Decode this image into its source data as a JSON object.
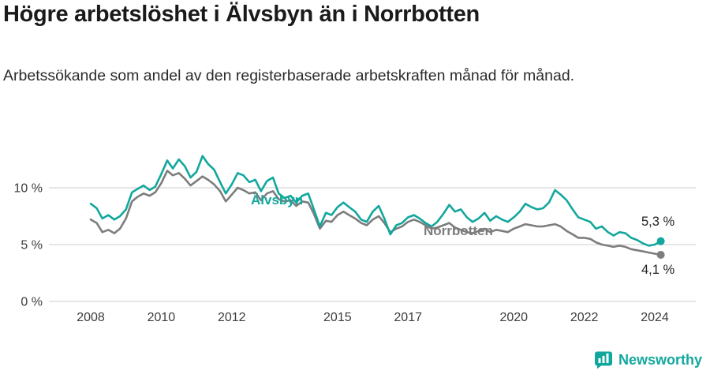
{
  "title": "Högre arbetslöshet i Älvsbyn än i Norrbotten",
  "subtitle": "Arbetssökande som andel av den registerbaserade arbetskraften månad för månad.",
  "footer": {
    "brand": "Newsworthy"
  },
  "colors": {
    "alvsbyn": "#12a79d",
    "norrbotten": "#7d7d7d",
    "grid": "#cccccc",
    "axis_text": "#3c3c3c",
    "title_text": "#1a1a1a"
  },
  "chart_data": {
    "type": "line",
    "title": "Högre arbetslöshet i Älvsbyn än i Norrbotten",
    "xlabel": "",
    "ylabel": "",
    "x_unit": "decimal_year",
    "xlim": [
      2007.8,
      2024.4
    ],
    "ylim": [
      0,
      13.5
    ],
    "grid": "horizontal",
    "legend_position": "inline",
    "y_ticks": [
      {
        "value": 0,
        "label": "0 %"
      },
      {
        "value": 5,
        "label": "5 %"
      },
      {
        "value": 10,
        "label": "10 %"
      }
    ],
    "x_ticks": [
      {
        "value": 2008,
        "label": "2008"
      },
      {
        "value": 2010,
        "label": "2010"
      },
      {
        "value": 2012,
        "label": "2012"
      },
      {
        "value": 2015,
        "label": "2015"
      },
      {
        "value": 2017,
        "label": "2017"
      },
      {
        "value": 2020,
        "label": "2020"
      },
      {
        "value": 2022,
        "label": "2022"
      },
      {
        "value": 2024,
        "label": "2024"
      }
    ],
    "series": [
      {
        "name": "Älvsbyn",
        "color": "#12a79d",
        "end_label": "5,3 %",
        "end_value": 5.3,
        "points": [
          [
            2008.0,
            8.6
          ],
          [
            2008.17,
            8.2
          ],
          [
            2008.33,
            7.3
          ],
          [
            2008.5,
            7.6
          ],
          [
            2008.67,
            7.2
          ],
          [
            2008.83,
            7.5
          ],
          [
            2009.0,
            8.1
          ],
          [
            2009.17,
            9.6
          ],
          [
            2009.33,
            9.9
          ],
          [
            2009.5,
            10.2
          ],
          [
            2009.67,
            9.8
          ],
          [
            2009.83,
            10.1
          ],
          [
            2010.0,
            11.2
          ],
          [
            2010.17,
            12.4
          ],
          [
            2010.33,
            11.7
          ],
          [
            2010.5,
            12.5
          ],
          [
            2010.67,
            11.9
          ],
          [
            2010.83,
            10.9
          ],
          [
            2011.0,
            11.4
          ],
          [
            2011.17,
            12.8
          ],
          [
            2011.33,
            12.1
          ],
          [
            2011.5,
            11.6
          ],
          [
            2011.67,
            10.5
          ],
          [
            2011.83,
            9.5
          ],
          [
            2012.0,
            10.3
          ],
          [
            2012.17,
            11.3
          ],
          [
            2012.33,
            11.1
          ],
          [
            2012.5,
            10.5
          ],
          [
            2012.67,
            10.7
          ],
          [
            2012.83,
            9.7
          ],
          [
            2013.0,
            10.6
          ],
          [
            2013.17,
            10.9
          ],
          [
            2013.33,
            9.5
          ],
          [
            2013.5,
            9.1
          ],
          [
            2013.67,
            9.3
          ],
          [
            2013.83,
            8.7
          ],
          [
            2014.0,
            9.3
          ],
          [
            2014.17,
            9.5
          ],
          [
            2014.33,
            8.1
          ],
          [
            2014.5,
            6.6
          ],
          [
            2014.67,
            7.8
          ],
          [
            2014.83,
            7.6
          ],
          [
            2015.0,
            8.3
          ],
          [
            2015.17,
            8.7
          ],
          [
            2015.33,
            8.3
          ],
          [
            2015.5,
            7.9
          ],
          [
            2015.67,
            7.2
          ],
          [
            2015.83,
            7.0
          ],
          [
            2016.0,
            7.9
          ],
          [
            2016.17,
            8.4
          ],
          [
            2016.33,
            7.3
          ],
          [
            2016.5,
            5.9
          ],
          [
            2016.67,
            6.7
          ],
          [
            2016.83,
            6.9
          ],
          [
            2017.0,
            7.4
          ],
          [
            2017.17,
            7.6
          ],
          [
            2017.33,
            7.3
          ],
          [
            2017.5,
            6.9
          ],
          [
            2017.67,
            6.6
          ],
          [
            2017.83,
            7.0
          ],
          [
            2018.0,
            7.7
          ],
          [
            2018.17,
            8.5
          ],
          [
            2018.33,
            7.9
          ],
          [
            2018.5,
            8.1
          ],
          [
            2018.67,
            7.4
          ],
          [
            2018.83,
            7.0
          ],
          [
            2019.0,
            7.3
          ],
          [
            2019.17,
            7.8
          ],
          [
            2019.33,
            7.1
          ],
          [
            2019.5,
            7.5
          ],
          [
            2019.67,
            7.2
          ],
          [
            2019.83,
            7.0
          ],
          [
            2020.0,
            7.4
          ],
          [
            2020.17,
            7.9
          ],
          [
            2020.33,
            8.6
          ],
          [
            2020.5,
            8.3
          ],
          [
            2020.67,
            8.1
          ],
          [
            2020.83,
            8.2
          ],
          [
            2021.0,
            8.7
          ],
          [
            2021.17,
            9.8
          ],
          [
            2021.33,
            9.4
          ],
          [
            2021.5,
            8.9
          ],
          [
            2021.67,
            8.1
          ],
          [
            2021.83,
            7.4
          ],
          [
            2022.0,
            7.2
          ],
          [
            2022.17,
            7.0
          ],
          [
            2022.33,
            6.4
          ],
          [
            2022.5,
            6.6
          ],
          [
            2022.67,
            6.1
          ],
          [
            2022.83,
            5.8
          ],
          [
            2023.0,
            6.1
          ],
          [
            2023.17,
            6.0
          ],
          [
            2023.33,
            5.6
          ],
          [
            2023.5,
            5.4
          ],
          [
            2023.67,
            5.1
          ],
          [
            2023.83,
            4.9
          ],
          [
            2024.0,
            5.0
          ],
          [
            2024.17,
            5.3
          ]
        ]
      },
      {
        "name": "Norrbotten",
        "color": "#7d7d7d",
        "end_label": "4,1 %",
        "end_value": 4.1,
        "points": [
          [
            2008.0,
            7.2
          ],
          [
            2008.17,
            6.9
          ],
          [
            2008.33,
            6.1
          ],
          [
            2008.5,
            6.3
          ],
          [
            2008.67,
            6.0
          ],
          [
            2008.83,
            6.4
          ],
          [
            2009.0,
            7.3
          ],
          [
            2009.17,
            8.8
          ],
          [
            2009.33,
            9.2
          ],
          [
            2009.5,
            9.5
          ],
          [
            2009.67,
            9.3
          ],
          [
            2009.83,
            9.6
          ],
          [
            2010.0,
            10.4
          ],
          [
            2010.17,
            11.5
          ],
          [
            2010.33,
            11.1
          ],
          [
            2010.5,
            11.3
          ],
          [
            2010.67,
            10.8
          ],
          [
            2010.83,
            10.2
          ],
          [
            2011.0,
            10.6
          ],
          [
            2011.17,
            11.0
          ],
          [
            2011.33,
            10.7
          ],
          [
            2011.5,
            10.3
          ],
          [
            2011.67,
            9.7
          ],
          [
            2011.83,
            8.8
          ],
          [
            2012.0,
            9.4
          ],
          [
            2012.17,
            10.0
          ],
          [
            2012.33,
            9.8
          ],
          [
            2012.5,
            9.5
          ],
          [
            2012.67,
            9.6
          ],
          [
            2012.83,
            8.9
          ],
          [
            2013.0,
            9.5
          ],
          [
            2013.17,
            9.7
          ],
          [
            2013.33,
            9.0
          ],
          [
            2013.5,
            8.8
          ],
          [
            2013.67,
            8.9
          ],
          [
            2013.83,
            8.4
          ],
          [
            2014.0,
            8.8
          ],
          [
            2014.17,
            8.7
          ],
          [
            2014.33,
            7.7
          ],
          [
            2014.5,
            6.4
          ],
          [
            2014.67,
            7.1
          ],
          [
            2014.83,
            7.0
          ],
          [
            2015.0,
            7.6
          ],
          [
            2015.17,
            7.9
          ],
          [
            2015.33,
            7.6
          ],
          [
            2015.5,
            7.3
          ],
          [
            2015.67,
            6.9
          ],
          [
            2015.83,
            6.7
          ],
          [
            2016.0,
            7.2
          ],
          [
            2016.17,
            7.5
          ],
          [
            2016.33,
            6.9
          ],
          [
            2016.5,
            6.1
          ],
          [
            2016.67,
            6.4
          ],
          [
            2016.83,
            6.6
          ],
          [
            2017.0,
            7.0
          ],
          [
            2017.17,
            7.2
          ],
          [
            2017.33,
            7.0
          ],
          [
            2017.5,
            6.7
          ],
          [
            2017.67,
            6.4
          ],
          [
            2017.83,
            6.5
          ],
          [
            2018.0,
            6.7
          ],
          [
            2018.17,
            6.9
          ],
          [
            2018.33,
            6.5
          ],
          [
            2018.5,
            6.3
          ],
          [
            2018.67,
            6.1
          ],
          [
            2018.83,
            6.0
          ],
          [
            2019.0,
            6.2
          ],
          [
            2019.17,
            6.4
          ],
          [
            2019.33,
            6.1
          ],
          [
            2019.5,
            6.3
          ],
          [
            2019.67,
            6.2
          ],
          [
            2019.83,
            6.1
          ],
          [
            2020.0,
            6.4
          ],
          [
            2020.17,
            6.6
          ],
          [
            2020.33,
            6.8
          ],
          [
            2020.5,
            6.7
          ],
          [
            2020.67,
            6.6
          ],
          [
            2020.83,
            6.6
          ],
          [
            2021.0,
            6.7
          ],
          [
            2021.17,
            6.8
          ],
          [
            2021.33,
            6.6
          ],
          [
            2021.5,
            6.2
          ],
          [
            2021.67,
            5.9
          ],
          [
            2021.83,
            5.6
          ],
          [
            2022.0,
            5.6
          ],
          [
            2022.17,
            5.5
          ],
          [
            2022.33,
            5.2
          ],
          [
            2022.5,
            5.0
          ],
          [
            2022.67,
            4.9
          ],
          [
            2022.83,
            4.8
          ],
          [
            2023.0,
            4.9
          ],
          [
            2023.17,
            4.8
          ],
          [
            2023.33,
            4.6
          ],
          [
            2023.5,
            4.5
          ],
          [
            2023.67,
            4.4
          ],
          [
            2023.83,
            4.3
          ],
          [
            2024.0,
            4.2
          ],
          [
            2024.17,
            4.1
          ]
        ]
      }
    ]
  }
}
